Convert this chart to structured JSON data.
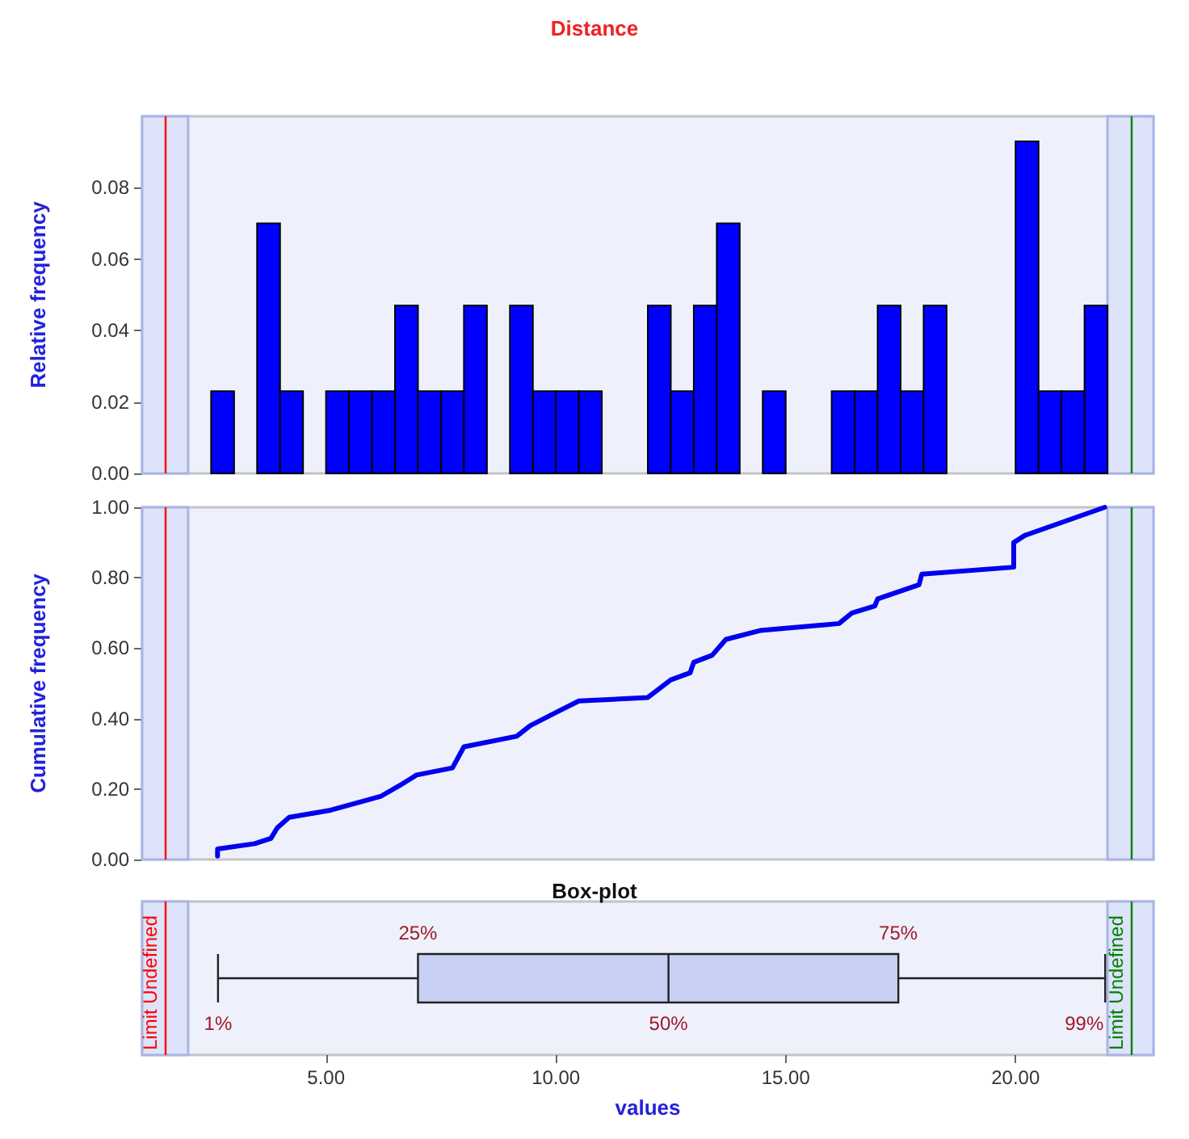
{
  "chart_data": [
    {
      "type": "histogram",
      "title": "Distance",
      "ylabel": "Relative frequency",
      "color": "#0000ff",
      "bins": [
        2,
        2.5,
        3,
        3.5,
        4,
        4.5,
        5,
        5.5,
        6,
        6.5,
        7,
        7.5,
        8,
        8.5,
        9,
        9.5,
        10,
        10.5,
        11,
        11.5,
        12,
        12.5,
        13,
        13.5,
        14,
        14.5,
        15,
        15.5,
        16,
        16.5,
        17,
        17.5,
        18,
        18.5,
        19,
        19.5,
        20,
        20.5,
        21,
        21.5,
        22
      ],
      "values": [
        0,
        0.023,
        0,
        0.07,
        0.023,
        0,
        0.023,
        0.023,
        0.023,
        0.047,
        0.023,
        0.023,
        0.047,
        0,
        0.047,
        0.023,
        0.023,
        0.023,
        0,
        0,
        0.047,
        0.023,
        0.047,
        0.07,
        0,
        0.023,
        0,
        0,
        0.023,
        0.023,
        0.047,
        0.023,
        0.047,
        0,
        0,
        0,
        0.093,
        0.023,
        0.023,
        0.047
      ],
      "xlim": [
        1,
        23
      ],
      "ylim": [
        0,
        0.1
      ],
      "yticks": [
        {
          "value": 0,
          "label": "0.00"
        },
        {
          "value": 0.02,
          "label": "0.02"
        },
        {
          "value": 0.04,
          "label": "0.04"
        },
        {
          "value": 0.06,
          "label": "0.06"
        },
        {
          "value": 0.08,
          "label": "0.08"
        }
      ],
      "tick_labels": "y",
      "ref_lines": [
        {
          "axis": "x",
          "value": 1.5,
          "color": "#ff0000"
        },
        {
          "axis": "x",
          "value": 22.5,
          "color": "#008000"
        }
      ],
      "bands": [
        {
          "axis": "x",
          "from": 1,
          "to": 2,
          "color": "#dde3f8"
        },
        {
          "axis": "x",
          "from": 22,
          "to": 23,
          "color": "#dde3f8"
        }
      ]
    },
    {
      "type": "line",
      "ylabel": "Cumulative frequency",
      "color": "#0000ee",
      "marker": "none",
      "x": [
        2.64,
        2.64,
        3.45,
        3.8,
        3.94,
        4.2,
        5.1,
        6.2,
        6.6,
        6.97,
        7.75,
        8.0,
        9.15,
        9.44,
        10.04,
        10.5,
        12.0,
        12.5,
        12.92,
        13.0,
        13.4,
        13.7,
        14.44,
        16.16,
        16.44,
        16.94,
        17.0,
        17.9,
        17.96,
        19.96,
        19.96,
        20.2,
        21.94
      ],
      "values": [
        0.01,
        0.03,
        0.045,
        0.06,
        0.09,
        0.12,
        0.14,
        0.18,
        0.21,
        0.24,
        0.26,
        0.32,
        0.35,
        0.38,
        0.42,
        0.45,
        0.46,
        0.51,
        0.53,
        0.56,
        0.58,
        0.625,
        0.65,
        0.67,
        0.7,
        0.72,
        0.74,
        0.78,
        0.81,
        0.83,
        0.9,
        0.92,
        1.0
      ],
      "xlim": [
        1,
        23
      ],
      "ylim": [
        0,
        1
      ],
      "yticks": [
        {
          "value": 0,
          "label": "0.00"
        },
        {
          "value": 0.2,
          "label": "0.20"
        },
        {
          "value": 0.4,
          "label": "0.40"
        },
        {
          "value": 0.6,
          "label": "0.60"
        },
        {
          "value": 0.8,
          "label": "0.80"
        },
        {
          "value": 1,
          "label": "1.00"
        }
      ],
      "tick_labels": "y",
      "ref_lines": [
        {
          "axis": "x",
          "value": 1.5,
          "color": "#ff0000"
        },
        {
          "axis": "x",
          "value": 22.5,
          "color": "#008000"
        }
      ],
      "bands": [
        {
          "axis": "x",
          "from": 1,
          "to": 2,
          "color": "#dde3f8"
        },
        {
          "axis": "x",
          "from": 22,
          "to": 23,
          "color": "#dde3f8"
        }
      ]
    },
    {
      "type": "box",
      "title": "Box-plot",
      "xlabel": "values",
      "orientation": "horizontal",
      "categories": [
        null
      ],
      "boxes": [
        {
          "low": 2.65,
          "q1": 7.0,
          "median": 12.45,
          "q3": 17.45,
          "high": 21.95
        }
      ],
      "xlim": [
        1,
        23
      ],
      "xticks": [
        {
          "value": 5,
          "label": "5.00"
        },
        {
          "value": 10,
          "label": "10.00"
        },
        {
          "value": 15,
          "label": "15.00"
        },
        {
          "value": 20,
          "label": "20.00"
        }
      ],
      "tick_labels": "x",
      "annotations": [
        "1%",
        "25%",
        "50%",
        "75%",
        "99%"
      ],
      "ref_lines": [
        {
          "axis": "x",
          "value": 1.5,
          "label": "Limit Undefined",
          "color": "#ff0000"
        },
        {
          "axis": "x",
          "value": 22.5,
          "label": "Limit Undefined",
          "color": "#008000"
        }
      ],
      "bands": [
        {
          "axis": "x",
          "from": 1,
          "to": 2,
          "color": "#dde3f8"
        },
        {
          "axis": "x",
          "from": 22,
          "to": 23,
          "color": "#dde3f8"
        }
      ]
    }
  ]
}
